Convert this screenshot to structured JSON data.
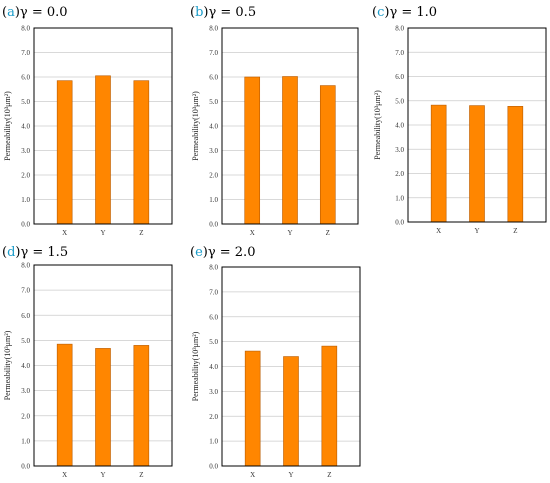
{
  "style": {
    "bar_color": "#ff8600",
    "bar_edge": "#b85a00",
    "letter_color": "#1a9cc9",
    "grid_color": "#cccccc"
  },
  "chart_data": [
    {
      "type": "bar",
      "letter": "a",
      "gamma": "γ = 0.0",
      "ylabel": "Permeability",
      "ylabel_unit": "(10³μm²)",
      "categories": [
        "X",
        "Y",
        "Z"
      ],
      "values": [
        5.85,
        6.05,
        5.85
      ],
      "ylim": [
        0,
        8
      ],
      "yticks": [
        "0.0",
        "1.0",
        "2.0",
        "3.0",
        "4.0",
        "5.0",
        "6.0",
        "7.0",
        "8.0"
      ]
    },
    {
      "type": "bar",
      "letter": "b",
      "gamma": "γ = 0.5",
      "ylabel": "Permeability",
      "ylabel_unit": "(10³μm²)",
      "categories": [
        "X",
        "Y",
        "Z"
      ],
      "values": [
        6.0,
        6.02,
        5.65
      ],
      "ylim": [
        0,
        8
      ],
      "yticks": [
        "0.0",
        "1.0",
        "2.0",
        "3.0",
        "4.0",
        "5.0",
        "6.0",
        "7.0",
        "8.0"
      ]
    },
    {
      "type": "bar",
      "letter": "c",
      "gamma": "γ = 1.0",
      "ylabel": "Permeability",
      "ylabel_unit": "(10³μm²)",
      "categories": [
        "X",
        "Y",
        "Z"
      ],
      "values": [
        4.82,
        4.8,
        4.77
      ],
      "ylim": [
        0,
        8
      ],
      "yticks": [
        "0.0",
        "1.0",
        "2.0",
        "3.0",
        "4.0",
        "5.0",
        "6.0",
        "7.0",
        "8.0"
      ]
    },
    {
      "type": "bar",
      "letter": "d",
      "gamma": "γ = 1.5",
      "ylabel": "Permeability",
      "ylabel_unit": "(10³μm²)",
      "categories": [
        "X",
        "Y",
        "Z"
      ],
      "values": [
        4.85,
        4.68,
        4.8
      ],
      "ylim": [
        0,
        8
      ],
      "yticks": [
        "0.0",
        "1.0",
        "2.0",
        "3.0",
        "4.0",
        "5.0",
        "6.0",
        "7.0",
        "8.0"
      ]
    },
    {
      "type": "bar",
      "letter": "e",
      "gamma": "γ = 2.0",
      "ylabel": "Permeability",
      "ylabel_unit": "(10³μm²)",
      "categories": [
        "X",
        "Y",
        "Z"
      ],
      "values": [
        4.62,
        4.4,
        4.82
      ],
      "ylim": [
        0,
        8
      ],
      "yticks": [
        "0.0",
        "1.0",
        "2.0",
        "3.0",
        "4.0",
        "5.0",
        "6.0",
        "7.0",
        "8.0"
      ]
    }
  ]
}
